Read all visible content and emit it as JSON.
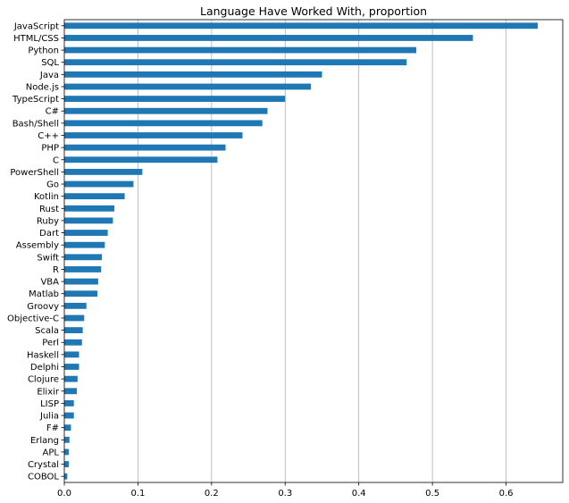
{
  "chart_data": {
    "type": "bar",
    "orientation": "horizontal",
    "title": "Language Have Worked With, proportion",
    "xlabel": "",
    "ylabel": "",
    "xlim": [
      0,
      0.677
    ],
    "xticks": [
      "0.0",
      "0.1",
      "0.2",
      "0.3",
      "0.4",
      "0.5",
      "0.6"
    ],
    "grid": "vertical",
    "color": "#1f77b4",
    "categories": [
      "JavaScript",
      "HTML/CSS",
      "Python",
      "SQL",
      "Java",
      "Node.js",
      "TypeScript",
      "C#",
      "Bash/Shell",
      "C++",
      "PHP",
      "C",
      "PowerShell",
      "Go",
      "Kotlin",
      "Rust",
      "Ruby",
      "Dart",
      "Assembly",
      "Swift",
      "R",
      "VBA",
      "Matlab",
      "Groovy",
      "Objective-C",
      "Scala",
      "Perl",
      "Haskell",
      "Delphi",
      "Clojure",
      "Elixir",
      "LISP",
      "Julia",
      "F#",
      "Erlang",
      "APL",
      "Crystal",
      "COBOL"
    ],
    "values": [
      0.643,
      0.555,
      0.478,
      0.465,
      0.35,
      0.335,
      0.3,
      0.276,
      0.269,
      0.242,
      0.219,
      0.208,
      0.106,
      0.094,
      0.082,
      0.068,
      0.066,
      0.059,
      0.055,
      0.051,
      0.05,
      0.046,
      0.045,
      0.03,
      0.027,
      0.025,
      0.024,
      0.02,
      0.02,
      0.018,
      0.017,
      0.013,
      0.013,
      0.009,
      0.007,
      0.006,
      0.006,
      0.004
    ]
  }
}
